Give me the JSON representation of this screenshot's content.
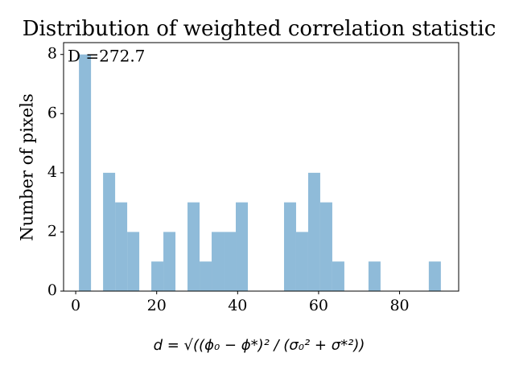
{
  "chart_data": {
    "type": "histogram",
    "title": "Distribution of weighted correlation statistic",
    "xlabel": "d = √((ϕ₀ − ϕ*)² / (σ₀² + σ*²))",
    "ylabel": "Number of pixels",
    "annotation": "D =272.7",
    "bins": [
      0.8,
      3.78,
      6.76,
      9.74,
      12.72,
      15.7,
      18.68,
      21.66,
      24.64,
      27.62,
      30.6,
      33.58,
      36.56,
      39.54,
      42.52,
      45.5,
      48.48,
      51.46,
      54.44,
      57.42,
      60.4,
      63.38,
      66.36,
      69.34,
      72.32,
      75.3,
      78.28,
      81.26,
      84.24,
      87.22,
      90.2
    ],
    "values": [
      8,
      0,
      4,
      3,
      2,
      0,
      1,
      2,
      0,
      3,
      1,
      2,
      2,
      3,
      0,
      0,
      0,
      3,
      2,
      4,
      3,
      1,
      0,
      0,
      1,
      0,
      0,
      0,
      0,
      1
    ],
    "color": "#8fbbd9",
    "xlim": [
      -3.0,
      94.6
    ],
    "xticks": [
      0,
      20,
      40,
      60,
      80
    ],
    "ylim": [
      0,
      8.4
    ],
    "yticks": [
      0,
      2,
      4,
      6,
      8
    ],
    "grid": false
  }
}
